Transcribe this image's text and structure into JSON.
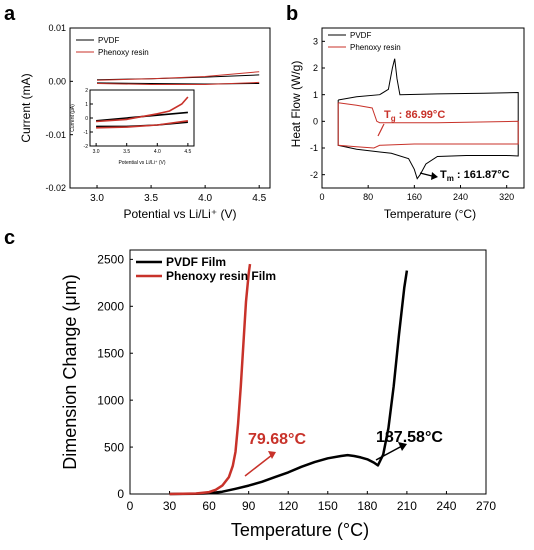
{
  "colors": {
    "black": "#000000",
    "red": "#c8322a",
    "red_text": "#c8322a"
  },
  "chart_data": [
    {
      "panel_label": "a",
      "type": "line",
      "xlabel": "Potential vs Li/Li⁺ (V)",
      "ylabel": "Current (mA)",
      "xlim": [
        2.75,
        4.6
      ],
      "ylim": [
        -0.02,
        0.01
      ],
      "xticks": [
        "3.0",
        "3.5",
        "4.0",
        "4.5"
      ],
      "yticks": [
        "0.01",
        "0.00",
        "-0.01",
        "-0.02"
      ],
      "legend": {
        "position": "top-left",
        "entries": [
          "PVDF",
          "Phenoxy resin"
        ]
      },
      "series": [
        {
          "name": "PVDF",
          "color": "#000000",
          "upper": [
            [
              3.0,
              0.0003
            ],
            [
              3.5,
              0.0005
            ],
            [
              4.0,
              0.0008
            ],
            [
              4.5,
              0.0012
            ]
          ],
          "lower": [
            [
              3.0,
              -0.0003
            ],
            [
              3.5,
              -0.0004
            ],
            [
              4.0,
              -0.0005
            ],
            [
              4.5,
              -0.0004
            ]
          ]
        },
        {
          "name": "Phenoxy resin",
          "color": "#c8322a",
          "upper": [
            [
              3.0,
              0.0002
            ],
            [
              3.5,
              0.0005
            ],
            [
              4.0,
              0.0009
            ],
            [
              4.5,
              0.0018
            ]
          ],
          "lower": [
            [
              3.0,
              -0.0004
            ],
            [
              3.5,
              -0.0006
            ],
            [
              4.0,
              -0.0006
            ],
            [
              4.5,
              -0.0002
            ]
          ]
        }
      ],
      "inset": {
        "xlabel": "Potential vs Li/Li⁺ (V)",
        "ylabel": "Current (μA)",
        "xlim": [
          2.9,
          4.6
        ],
        "ylim": [
          -2,
          2
        ],
        "xticks": [
          "3.0",
          "3.5",
          "4.0",
          "4.5"
        ],
        "yticks": [
          "2",
          "1",
          "0",
          "-1",
          "-2"
        ],
        "series": [
          {
            "name": "PVDF",
            "color": "#000000",
            "upper": [
              [
                3.0,
                -0.2
              ],
              [
                3.5,
                0.0
              ],
              [
                4.0,
                0.2
              ],
              [
                4.5,
                0.4
              ]
            ],
            "lower": [
              [
                3.0,
                -0.6
              ],
              [
                3.5,
                -0.6
              ],
              [
                4.0,
                -0.5
              ],
              [
                4.5,
                -0.3
              ]
            ]
          },
          {
            "name": "Phenoxy resin",
            "color": "#c8322a",
            "upper": [
              [
                3.0,
                -0.25
              ],
              [
                3.5,
                -0.1
              ],
              [
                4.0,
                0.3
              ],
              [
                4.2,
                0.5
              ],
              [
                4.4,
                1.0
              ],
              [
                4.5,
                1.5
              ]
            ],
            "lower": [
              [
                3.0,
                -0.7
              ],
              [
                3.5,
                -0.65
              ],
              [
                4.0,
                -0.5
              ],
              [
                4.5,
                -0.2
              ]
            ]
          }
        ]
      }
    },
    {
      "panel_label": "b",
      "type": "line",
      "xlabel": "Temperature (°C)",
      "ylabel": "Heat Flow (W/g)",
      "xlim": [
        0,
        350
      ],
      "ylim": [
        -2.5,
        3.5
      ],
      "xticks": [
        "0",
        "80",
        "160",
        "240",
        "320"
      ],
      "yticks": [
        "3",
        "2",
        "1",
        "0",
        "-1",
        "-2"
      ],
      "legend": {
        "position": "top-left",
        "entries": [
          "PVDF",
          "Phenoxy resin"
        ]
      },
      "series": [
        {
          "name": "PVDF",
          "color": "#000000",
          "heating": [
            [
              28,
              0.8
            ],
            [
              60,
              0.92
            ],
            [
              100,
              1.0
            ],
            [
              115,
              1.2
            ],
            [
              122,
              2.0
            ],
            [
              126,
              2.35
            ],
            [
              130,
              1.6
            ],
            [
              135,
              1.0
            ],
            [
              200,
              1.03
            ],
            [
              280,
              1.05
            ],
            [
              340,
              1.08
            ]
          ],
          "cooling": [
            [
              340,
              -1.3
            ],
            [
              320,
              -1.28
            ],
            [
              250,
              -1.28
            ],
            [
              200,
              -1.32
            ],
            [
              180,
              -1.6
            ],
            [
              170,
              -2.0
            ],
            [
              165,
              -2.15
            ],
            [
              160,
              -1.8
            ],
            [
              150,
              -1.4
            ],
            [
              120,
              -1.2
            ],
            [
              60,
              -1.05
            ],
            [
              28,
              -0.9
            ]
          ]
        },
        {
          "name": "Phenoxy resin",
          "color": "#c8322a",
          "heating": [
            [
              28,
              0.7
            ],
            [
              60,
              0.6
            ],
            [
              87,
              0.5
            ],
            [
              95,
              0.0
            ],
            [
              100,
              -0.05
            ],
            [
              200,
              -0.05
            ],
            [
              340,
              0.0
            ]
          ],
          "cooling": [
            [
              340,
              -0.85
            ],
            [
              250,
              -0.85
            ],
            [
              160,
              -0.85
            ],
            [
              100,
              -0.9
            ],
            [
              90,
              -1.0
            ],
            [
              60,
              -0.95
            ],
            [
              28,
              -0.9
            ]
          ]
        }
      ],
      "annotations": [
        {
          "text_main": "T",
          "sub": "g",
          "value": " : 86.99°C",
          "color": "#c8322a"
        },
        {
          "text_main": "T",
          "sub": "m",
          "value": " : 161.87°C",
          "color": "#000000"
        }
      ]
    },
    {
      "panel_label": "c",
      "type": "line",
      "xlabel": "Temperature (°C)",
      "ylabel": "Dimension Change (μm)",
      "xlim": [
        0,
        270
      ],
      "ylim": [
        0,
        2600
      ],
      "xticks": [
        "0",
        "30",
        "60",
        "90",
        "120",
        "150",
        "180",
        "210",
        "240",
        "270"
      ],
      "yticks": [
        "0",
        "500",
        "1000",
        "1500",
        "2000",
        "2500"
      ],
      "legend": {
        "position": "top-left",
        "entries": [
          "PVDF Film",
          "Phenoxy resin Film"
        ]
      },
      "series": [
        {
          "name": "PVDF Film",
          "color": "#000000",
          "x": [
            30,
            50,
            60,
            70,
            80,
            90,
            100,
            110,
            120,
            130,
            140,
            150,
            160,
            165,
            170,
            175,
            180,
            185,
            188,
            192,
            196,
            200,
            204,
            208,
            210
          ],
          "y": [
            0,
            2,
            8,
            25,
            55,
            90,
            130,
            180,
            230,
            290,
            340,
            380,
            405,
            415,
            405,
            390,
            370,
            335,
            305,
            420,
            700,
            1150,
            1700,
            2200,
            2380
          ]
        },
        {
          "name": "Phenoxy resin Film",
          "color": "#c8322a",
          "x": [
            30,
            50,
            60,
            65,
            70,
            75,
            78,
            80,
            82,
            84,
            86,
            88,
            90,
            91
          ],
          "y": [
            0,
            5,
            20,
            45,
            90,
            180,
            300,
            450,
            750,
            1150,
            1600,
            2050,
            2350,
            2450
          ]
        }
      ],
      "annotations": [
        {
          "text": "79.68°C",
          "color": "#c8322a"
        },
        {
          "text": "187.58°C",
          "color": "#000000"
        }
      ]
    }
  ]
}
